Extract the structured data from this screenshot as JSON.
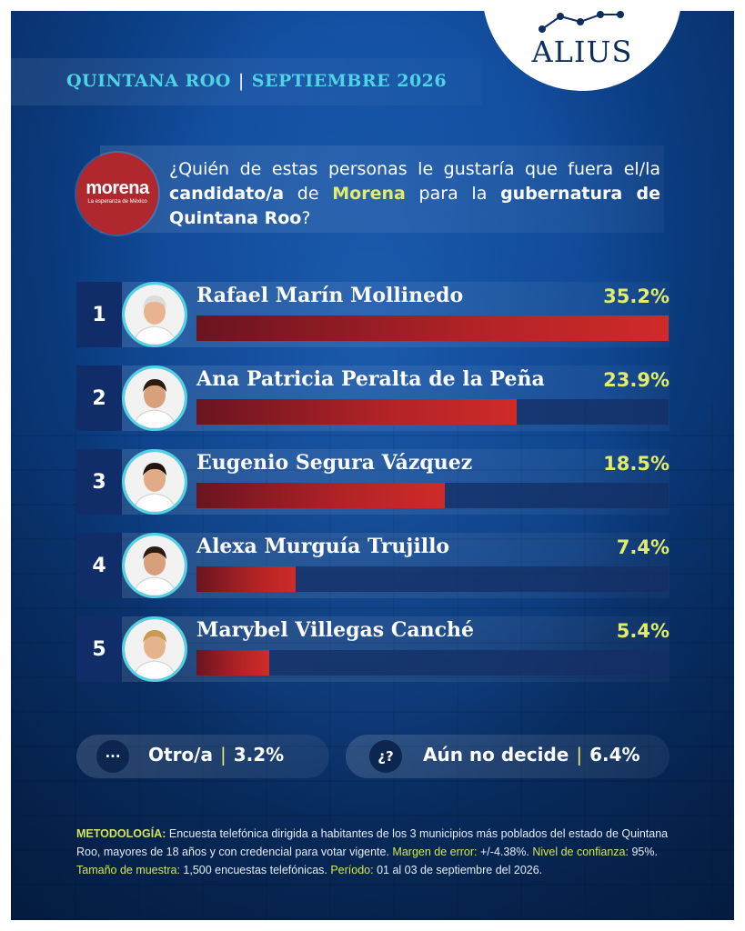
{
  "brand": {
    "logo_text": "ALIUS"
  },
  "header": {
    "state": "QUINTANA ROO",
    "date": "SEPTIEMBRE 2026"
  },
  "party": {
    "name": "morena",
    "tagline": "La esperanza de México",
    "color": "#b0282e"
  },
  "question": {
    "part1": "¿Quién de estas personas le gustaría que fuera el/la ",
    "bold1": "candidato/a",
    "part2": " de ",
    "party": "Morena",
    "part3": " para la ",
    "bold2": "gubernatura de Quintana Roo",
    "part4": "?"
  },
  "chart_data": {
    "type": "bar",
    "orientation": "horizontal",
    "categories": [
      "Rafael Marín Mollinedo",
      "Ana Patricia Peralta de la Peña",
      "Eugenio Segura Vázquez",
      "Alexa Murguía Trujillo",
      "Marybel Villegas Canché"
    ],
    "ranks": [
      "1",
      "2",
      "3",
      "4",
      "5"
    ],
    "values": [
      35.2,
      23.9,
      18.5,
      7.4,
      5.4
    ],
    "value_labels": [
      "35.2%",
      "23.9%",
      "18.5%",
      "7.4%",
      "5.4%"
    ],
    "xlim": [
      0,
      35.2
    ],
    "bar_color": "#b32326",
    "label_color": "#e3ec6a"
  },
  "extras": [
    {
      "icon": "···",
      "label": "Otro/a",
      "value": "3.2%"
    },
    {
      "icon": "¿?",
      "label": "Aún no decide",
      "value": "6.4%"
    }
  ],
  "methodology": {
    "label1": "METODOLOGÍA:",
    "text1": " Encuesta telefónica dirigida a habitantes de los 3 municipios más poblados del estado de Quintana Roo, mayores de 18 años y con credencial para votar vigente. ",
    "label2": "Margen de error:",
    "text2": " +/-4.38%. ",
    "label3": "Nivel de confianza:",
    "text3": " 95%. ",
    "label4": "Tamaño de muestra:",
    "text4": " 1,500 encuestas telefónicas. ",
    "label5": "Período:",
    "text5": " 01 al 03 de septiembre del 2026."
  }
}
